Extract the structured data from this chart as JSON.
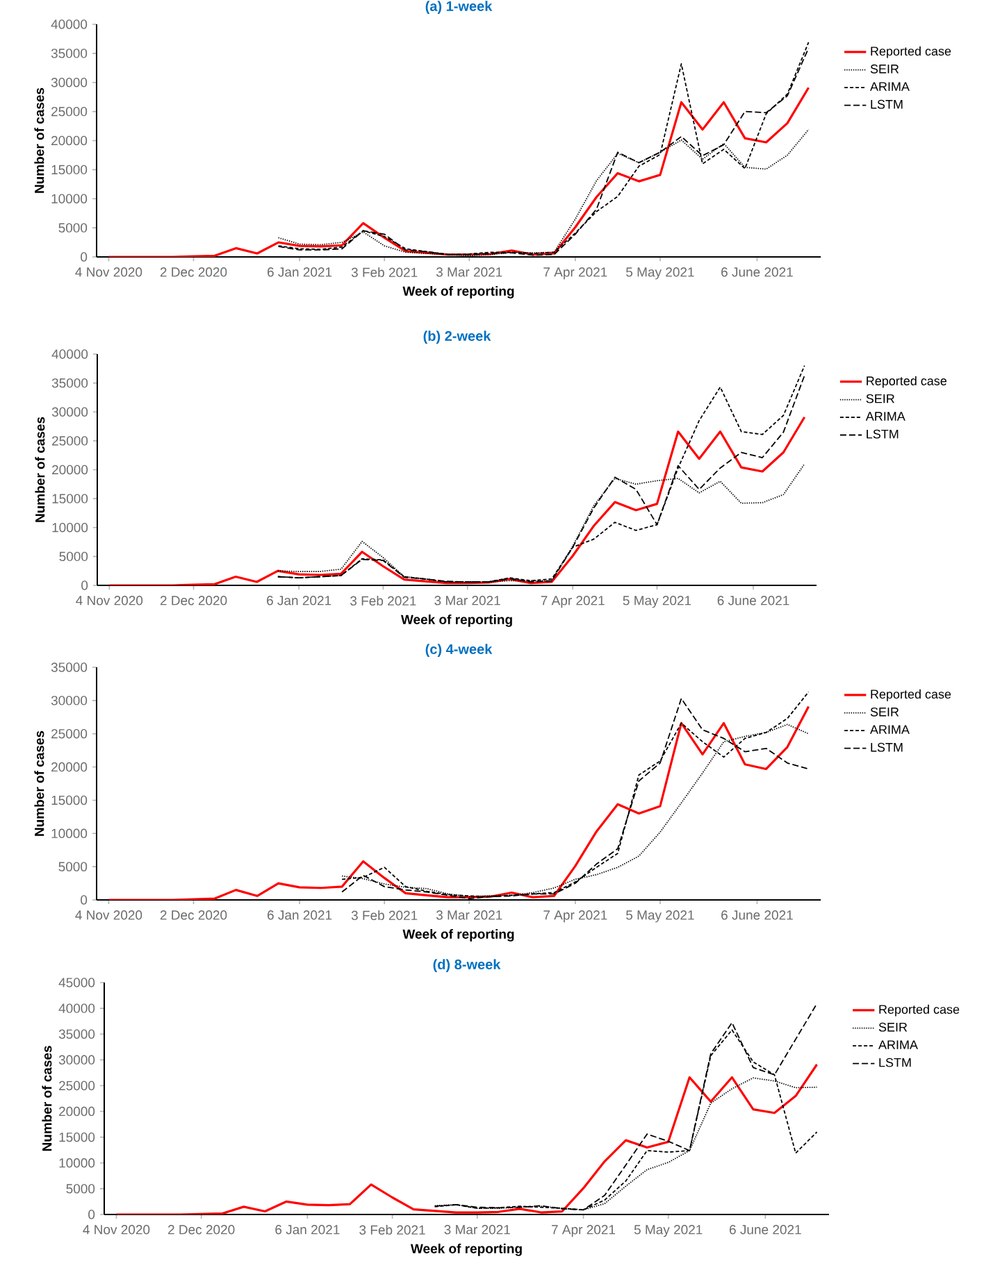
{
  "chart_data": [
    {
      "type": "line",
      "title": "(a) 1-week",
      "xlabel": "Week of reporting",
      "ylabel": "Number of cases",
      "legend": "right",
      "x": [
        "2020-11-04",
        "2020-11-11",
        "2020-11-18",
        "2020-11-25",
        "2020-12-02",
        "2020-12-09",
        "2020-12-16",
        "2020-12-23",
        "2020-12-30",
        "2021-01-06",
        "2021-01-13",
        "2021-01-20",
        "2021-01-27",
        "2021-02-03",
        "2021-02-10",
        "2021-02-17",
        "2021-02-24",
        "2021-03-03",
        "2021-03-10",
        "2021-03-17",
        "2021-03-24",
        "2021-03-31",
        "2021-04-07",
        "2021-04-14",
        "2021-04-21",
        "2021-04-28",
        "2021-05-05",
        "2021-05-12",
        "2021-05-19",
        "2021-05-26",
        "2021-06-02",
        "2021-06-09",
        "2021-06-16",
        "2021-06-23"
      ],
      "xlim": [
        "2020-10-31",
        "2021-06-27"
      ],
      "xticks": [
        {
          "value": "2020-11-04",
          "label": "4 Nov 2020"
        },
        {
          "value": "2020-12-02",
          "label": "2 Dec 2020"
        },
        {
          "value": "2021-01-06",
          "label": "6 Jan 2021"
        },
        {
          "value": "2021-02-03",
          "label": "3 Feb 2021"
        },
        {
          "value": "2021-03-03",
          "label": "3 Mar 2021"
        },
        {
          "value": "2021-04-07",
          "label": "7 Apr 2021"
        },
        {
          "value": "2021-05-05",
          "label": "5 May 2021"
        },
        {
          "value": "2021-06-06",
          "label": "6 June 2021"
        }
      ],
      "ylim": [
        0,
        40000
      ],
      "yticks": [
        0,
        5000,
        10000,
        15000,
        20000,
        25000,
        30000,
        35000,
        40000
      ],
      "series": [
        {
          "name": "Reported case",
          "color": "#ff0000",
          "line_style": "solid",
          "values": [
            0,
            0,
            0,
            0,
            100,
            200,
            1500,
            600,
            2500,
            1900,
            1800,
            2000,
            5800,
            3300,
            1000,
            700,
            400,
            400,
            500,
            1100,
            400,
            600,
            5100,
            10300,
            14400,
            13000,
            14100,
            26600,
            21900,
            26600,
            20400,
            19700,
            23000,
            29100
          ]
        },
        {
          "name": "SEIR",
          "color": "#000000",
          "line_style": "dotted",
          "values": [
            null,
            null,
            null,
            null,
            null,
            null,
            null,
            null,
            3300,
            2200,
            2100,
            2500,
            4300,
            1900,
            800,
            600,
            400,
            200,
            400,
            800,
            700,
            800,
            6500,
            13100,
            17800,
            16200,
            18000,
            20100,
            16800,
            19500,
            15400,
            15100,
            17500,
            21900
          ]
        },
        {
          "name": "ARIMA",
          "color": "#000000",
          "line_style": "dashed",
          "values": [
            null,
            null,
            null,
            null,
            null,
            null,
            null,
            null,
            1900,
            1400,
            1300,
            1700,
            4500,
            3500,
            1400,
            900,
            400,
            500,
            800,
            800,
            600,
            800,
            4100,
            7800,
            10400,
            15600,
            17600,
            33200,
            16000,
            18500,
            15200,
            24600,
            28000,
            36900
          ]
        },
        {
          "name": "LSTM",
          "color": "#000000",
          "line_style": "dashed",
          "values": [
            null,
            null,
            null,
            null,
            null,
            null,
            null,
            null,
            1800,
            1200,
            1200,
            1400,
            4500,
            3900,
            1200,
            900,
            400,
            400,
            600,
            700,
            300,
            400,
            3900,
            8200,
            18000,
            16200,
            18000,
            20700,
            17400,
            19300,
            25000,
            24800,
            27700,
            35900
          ]
        }
      ]
    },
    {
      "type": "line",
      "title": "(b) 2-week",
      "xlabel": "Week of reporting",
      "ylabel": "Number of cases",
      "legend": "right",
      "x": [
        "2020-11-04",
        "2020-11-11",
        "2020-11-18",
        "2020-11-25",
        "2020-12-02",
        "2020-12-09",
        "2020-12-16",
        "2020-12-23",
        "2020-12-30",
        "2021-01-06",
        "2021-01-13",
        "2021-01-20",
        "2021-01-27",
        "2021-02-03",
        "2021-02-10",
        "2021-02-17",
        "2021-02-24",
        "2021-03-03",
        "2021-03-10",
        "2021-03-17",
        "2021-03-24",
        "2021-03-31",
        "2021-04-07",
        "2021-04-14",
        "2021-04-21",
        "2021-04-28",
        "2021-05-05",
        "2021-05-12",
        "2021-05-19",
        "2021-05-26",
        "2021-06-02",
        "2021-06-09",
        "2021-06-16",
        "2021-06-23"
      ],
      "xlim": [
        "2020-10-31",
        "2021-06-27"
      ],
      "xticks": [
        {
          "value": "2020-11-04",
          "label": "4 Nov 2020"
        },
        {
          "value": "2020-12-02",
          "label": "2 Dec 2020"
        },
        {
          "value": "2021-01-06",
          "label": "6 Jan 2021"
        },
        {
          "value": "2021-02-03",
          "label": "3 Feb 2021"
        },
        {
          "value": "2021-03-03",
          "label": "3 Mar 2021"
        },
        {
          "value": "2021-04-07",
          "label": "7 Apr 2021"
        },
        {
          "value": "2021-05-05",
          "label": "5 May 2021"
        },
        {
          "value": "2021-06-06",
          "label": "6 June 2021"
        }
      ],
      "ylim": [
        0,
        40000
      ],
      "yticks": [
        0,
        5000,
        10000,
        15000,
        20000,
        25000,
        30000,
        35000,
        40000
      ],
      "series": [
        {
          "name": "Reported case",
          "color": "#ff0000",
          "line_style": "solid",
          "values": [
            0,
            0,
            0,
            0,
            100,
            200,
            1500,
            600,
            2500,
            1900,
            1800,
            2000,
            5800,
            3300,
            1000,
            700,
            400,
            400,
            500,
            1100,
            400,
            600,
            5100,
            10300,
            14400,
            13000,
            14100,
            26600,
            21900,
            26600,
            20400,
            19700,
            23000,
            29100
          ]
        },
        {
          "name": "SEIR",
          "color": "#000000",
          "line_style": "dotted",
          "values": [
            null,
            null,
            null,
            null,
            null,
            null,
            null,
            null,
            2500,
            2400,
            2400,
            2800,
            7600,
            4800,
            1500,
            1100,
            600,
            500,
            600,
            800,
            800,
            800,
            6800,
            13800,
            18500,
            17500,
            18100,
            18500,
            16000,
            18000,
            14200,
            14300,
            15700,
            21000
          ]
        },
        {
          "name": "ARIMA",
          "color": "#000000",
          "line_style": "dashed",
          "values": [
            null,
            null,
            null,
            null,
            null,
            null,
            null,
            null,
            1500,
            1300,
            1500,
            1700,
            4600,
            4400,
            1500,
            1100,
            600,
            600,
            600,
            1300,
            800,
            1100,
            6600,
            8000,
            10900,
            9500,
            10500,
            20300,
            28500,
            34300,
            26600,
            26100,
            29400,
            38000
          ]
        },
        {
          "name": "LSTM",
          "color": "#000000",
          "line_style": "dashed",
          "values": [
            null,
            null,
            null,
            null,
            null,
            null,
            null,
            null,
            1500,
            1300,
            1500,
            1700,
            4500,
            4300,
            1400,
            1100,
            700,
            600,
            600,
            1200,
            600,
            800,
            6600,
            13400,
            18700,
            16600,
            10500,
            20700,
            16600,
            20300,
            23000,
            22100,
            26500,
            36300
          ]
        }
      ]
    },
    {
      "type": "line",
      "title": "(c) 4-week",
      "xlabel": "Week of reporting",
      "ylabel": "Number of cases",
      "legend": "right",
      "x": [
        "2020-11-04",
        "2020-11-11",
        "2020-11-18",
        "2020-11-25",
        "2020-12-02",
        "2020-12-09",
        "2020-12-16",
        "2020-12-23",
        "2020-12-30",
        "2021-01-06",
        "2021-01-13",
        "2021-01-20",
        "2021-01-27",
        "2021-02-03",
        "2021-02-10",
        "2021-02-17",
        "2021-02-24",
        "2021-03-03",
        "2021-03-10",
        "2021-03-17",
        "2021-03-24",
        "2021-03-31",
        "2021-04-07",
        "2021-04-14",
        "2021-04-21",
        "2021-04-28",
        "2021-05-05",
        "2021-05-12",
        "2021-05-19",
        "2021-05-26",
        "2021-06-02",
        "2021-06-09",
        "2021-06-16",
        "2021-06-23"
      ],
      "xlim": [
        "2020-10-31",
        "2021-06-27"
      ],
      "xticks": [
        {
          "value": "2020-11-04",
          "label": "4 Nov 2020"
        },
        {
          "value": "2020-12-02",
          "label": "2 Dec 2020"
        },
        {
          "value": "2021-01-06",
          "label": "6 Jan 2021"
        },
        {
          "value": "2021-02-03",
          "label": "3 Feb 2021"
        },
        {
          "value": "2021-03-03",
          "label": "3 Mar 2021"
        },
        {
          "value": "2021-04-07",
          "label": "7 Apr 2021"
        },
        {
          "value": "2021-05-05",
          "label": "5 May 2021"
        },
        {
          "value": "2021-06-06",
          "label": "6 June 2021"
        }
      ],
      "ylim": [
        0,
        35000
      ],
      "yticks": [
        0,
        5000,
        10000,
        15000,
        20000,
        25000,
        30000,
        35000
      ],
      "series": [
        {
          "name": "Reported case",
          "color": "#ff0000",
          "line_style": "solid",
          "values": [
            0,
            0,
            0,
            0,
            100,
            200,
            1500,
            600,
            2500,
            1900,
            1800,
            2000,
            5800,
            3300,
            1000,
            700,
            400,
            400,
            500,
            1100,
            400,
            600,
            5100,
            10300,
            14400,
            13000,
            14100,
            26600,
            21900,
            26600,
            20400,
            19700,
            23000,
            29100
          ]
        },
        {
          "name": "SEIR",
          "color": "#000000",
          "line_style": "dotted",
          "values": [
            null,
            null,
            null,
            null,
            null,
            null,
            null,
            null,
            null,
            null,
            null,
            3600,
            3200,
            2400,
            1900,
            1700,
            900,
            500,
            600,
            700,
            1100,
            1800,
            3100,
            3800,
            4900,
            6600,
            10200,
            14600,
            19100,
            23800,
            24600,
            25200,
            26400,
            25000
          ]
        },
        {
          "name": "ARIMA",
          "color": "#000000",
          "line_style": "dashed",
          "values": [
            null,
            null,
            null,
            null,
            null,
            null,
            null,
            null,
            null,
            null,
            null,
            3100,
            3400,
            4900,
            2000,
            1300,
            800,
            600,
            500,
            700,
            900,
            1100,
            2700,
            4900,
            7000,
            18800,
            20900,
            26600,
            23800,
            21500,
            24300,
            25200,
            27300,
            31300
          ]
        },
        {
          "name": "LSTM",
          "color": "#000000",
          "line_style": "dashed",
          "values": [
            null,
            null,
            null,
            null,
            null,
            null,
            null,
            null,
            null,
            null,
            null,
            1200,
            3700,
            2000,
            1500,
            1200,
            700,
            200,
            500,
            600,
            900,
            900,
            2500,
            5400,
            7700,
            17900,
            20600,
            30300,
            25600,
            24300,
            22300,
            22800,
            20600,
            19700
          ]
        }
      ]
    },
    {
      "type": "line",
      "title": "(d) 8-week",
      "xlabel": "Week of reporting",
      "ylabel": "Number of cases",
      "legend": "right",
      "x": [
        "2020-11-04",
        "2020-11-11",
        "2020-11-18",
        "2020-11-25",
        "2020-12-02",
        "2020-12-09",
        "2020-12-16",
        "2020-12-23",
        "2020-12-30",
        "2021-01-06",
        "2021-01-13",
        "2021-01-20",
        "2021-01-27",
        "2021-02-03",
        "2021-02-10",
        "2021-02-17",
        "2021-02-24",
        "2021-03-03",
        "2021-03-10",
        "2021-03-17",
        "2021-03-24",
        "2021-03-31",
        "2021-04-07",
        "2021-04-14",
        "2021-04-21",
        "2021-04-28",
        "2021-05-05",
        "2021-05-12",
        "2021-05-19",
        "2021-05-26",
        "2021-06-02",
        "2021-06-09",
        "2021-06-16",
        "2021-06-23"
      ],
      "xlim": [
        "2020-10-31",
        "2021-06-27"
      ],
      "xticks": [
        {
          "value": "2020-11-04",
          "label": "4 Nov 2020"
        },
        {
          "value": "2020-12-02",
          "label": "2 Dec 2020"
        },
        {
          "value": "2021-01-06",
          "label": "6 Jan 2021"
        },
        {
          "value": "2021-02-03",
          "label": "3 Feb 2021"
        },
        {
          "value": "2021-03-03",
          "label": "3 Mar 2021"
        },
        {
          "value": "2021-04-07",
          "label": "7 Apr 2021"
        },
        {
          "value": "2021-05-05",
          "label": "5 May 2021"
        },
        {
          "value": "2021-06-06",
          "label": "6 June 2021"
        }
      ],
      "ylim": [
        0,
        45000
      ],
      "yticks": [
        0,
        5000,
        10000,
        15000,
        20000,
        25000,
        30000,
        35000,
        40000,
        45000
      ],
      "series": [
        {
          "name": "Reported case",
          "color": "#ff0000",
          "line_style": "solid",
          "values": [
            0,
            0,
            0,
            0,
            100,
            200,
            1500,
            600,
            2500,
            1900,
            1800,
            2000,
            5800,
            3300,
            1000,
            700,
            400,
            400,
            500,
            1100,
            400,
            600,
            5100,
            10300,
            14400,
            13000,
            14100,
            26600,
            21900,
            26600,
            20400,
            19700,
            23000,
            29100
          ]
        },
        {
          "name": "SEIR",
          "color": "#000000",
          "line_style": "dotted",
          "values": [
            null,
            null,
            null,
            null,
            null,
            null,
            null,
            null,
            null,
            null,
            null,
            null,
            null,
            null,
            null,
            1700,
            1900,
            1200,
            1200,
            1400,
            1600,
            1200,
            900,
            2100,
            5500,
            8700,
            10100,
            12400,
            21600,
            24400,
            26500,
            25900,
            24600,
            24700
          ]
        },
        {
          "name": "ARIMA",
          "color": "#000000",
          "line_style": "dashed",
          "values": [
            null,
            null,
            null,
            null,
            null,
            null,
            null,
            null,
            null,
            null,
            null,
            null,
            null,
            null,
            null,
            1500,
            1900,
            1200,
            1300,
            1600,
            1400,
            1200,
            900,
            2800,
            6500,
            12400,
            12100,
            12400,
            30800,
            35800,
            29600,
            27100,
            11900,
            16000
          ]
        },
        {
          "name": "LSTM",
          "color": "#000000",
          "line_style": "dashed",
          "values": [
            null,
            null,
            null,
            null,
            null,
            null,
            null,
            null,
            null,
            null,
            null,
            null,
            null,
            null,
            null,
            1600,
            1900,
            1400,
            1300,
            1400,
            1700,
            1100,
            900,
            3700,
            9600,
            15600,
            14200,
            12400,
            31200,
            37200,
            28500,
            27100,
            34000,
            40900
          ]
        }
      ]
    }
  ]
}
